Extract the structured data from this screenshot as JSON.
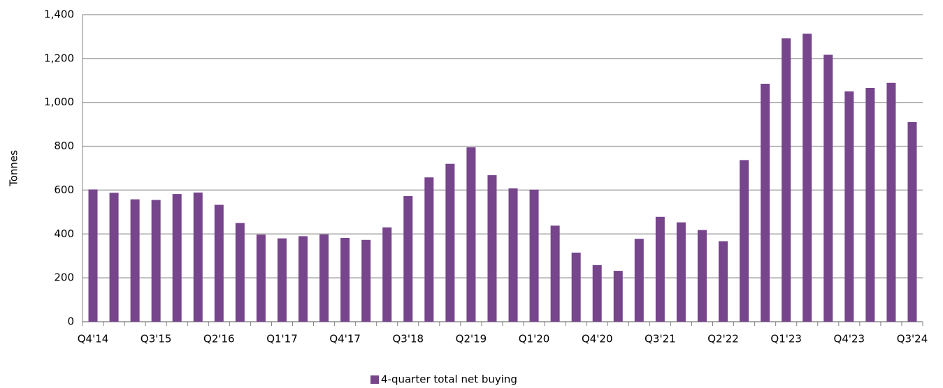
{
  "chart_data": {
    "type": "bar",
    "y_axis_label": "Tonnes",
    "categories": [
      "Q4'14",
      null,
      null,
      "Q3'15",
      null,
      null,
      "Q2'16",
      null,
      null,
      "Q1'17",
      null,
      null,
      "Q4'17",
      null,
      null,
      "Q3'18",
      null,
      null,
      "Q2'19",
      null,
      null,
      "Q1'20",
      null,
      null,
      "Q4'20",
      null,
      null,
      "Q3'21",
      null,
      null,
      "Q2'22",
      null,
      null,
      "Q1'23",
      null,
      null,
      "Q4'23",
      null,
      null,
      "Q3'24"
    ],
    "series": [
      {
        "name": "4-quarter total net buying",
        "color": "#76458c",
        "values": [
          603,
          588,
          558,
          555,
          582,
          589,
          533,
          450,
          397,
          380,
          390,
          398,
          382,
          373,
          430,
          573,
          658,
          720,
          795,
          668,
          608,
          602,
          438,
          315,
          258,
          232,
          378,
          478,
          453,
          418,
          367,
          737,
          1085,
          1292,
          1313,
          1217,
          1050,
          1066,
          1089,
          910
        ]
      }
    ],
    "ylim": [
      0,
      1400
    ],
    "yticks": [
      0,
      200,
      400,
      600,
      800,
      {
        "value": 1000,
        "label": "1,000"
      },
      {
        "value": 1200,
        "label": "1,200"
      },
      {
        "value": 1400,
        "label": "1,400"
      }
    ],
    "grid": true,
    "legend": "bottom"
  }
}
